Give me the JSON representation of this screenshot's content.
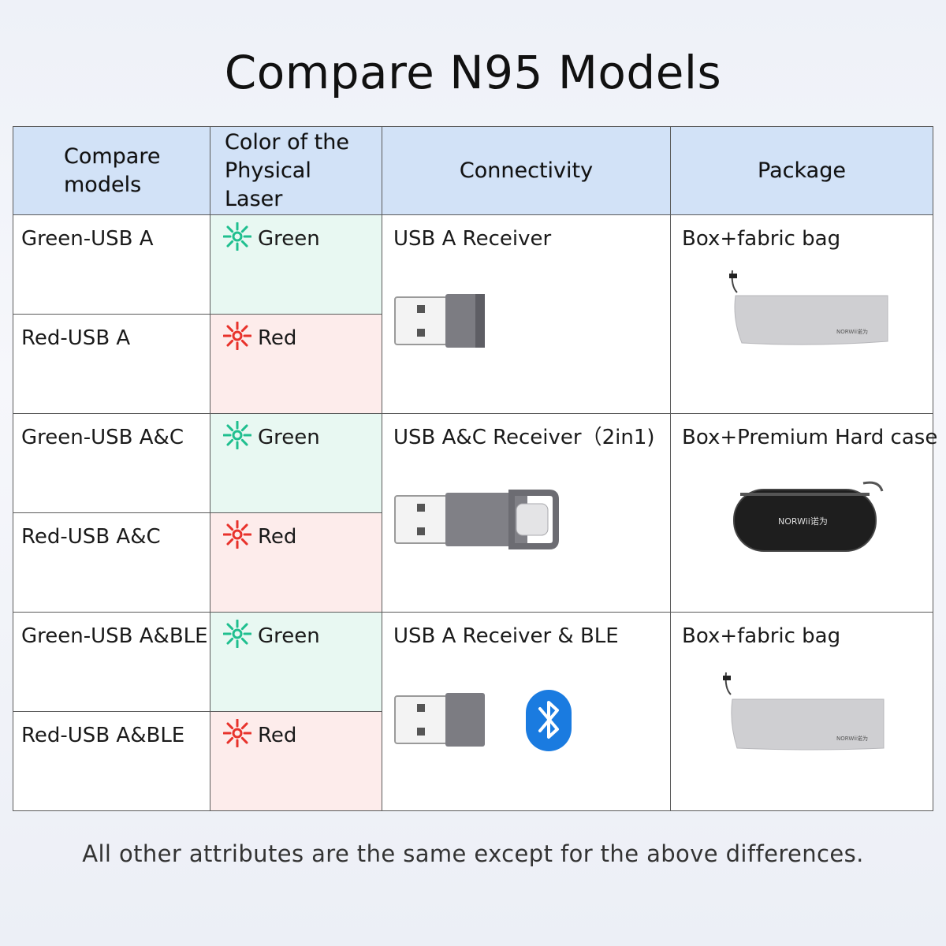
{
  "title": "Compare N95 Models",
  "headers": {
    "model": "Compare models",
    "laser": "Color of the Physical Laser",
    "connectivity": "Connectivity",
    "package": "Package"
  },
  "rows": [
    {
      "model": "Green-USB A",
      "laser": "Green",
      "laser_color": "#1fbf8f"
    },
    {
      "model": "Red-USB A",
      "laser": "Red",
      "laser_color": "#e8322b"
    },
    {
      "model": "Green-USB A&C",
      "laser": "Green",
      "laser_color": "#1fbf8f"
    },
    {
      "model": "Red-USB A&C",
      "laser": "Red",
      "laser_color": "#e8322b"
    },
    {
      "model": "Green-USB A&BLE",
      "laser": "Green",
      "laser_color": "#1fbf8f"
    },
    {
      "model": "Red-USB A&BLE",
      "laser": "Red",
      "laser_color": "#e8322b"
    }
  ],
  "groups": [
    {
      "connectivity": "USB A Receiver",
      "package": "Box+fabric bag",
      "brand": "NORWii诺为"
    },
    {
      "connectivity": "USB A&C Receiver（2in1)",
      "package": "Box+Premium Hard case",
      "brand": "NORWii诺为"
    },
    {
      "connectivity": "USB A Receiver & BLE",
      "package": "Box+fabric bag",
      "brand": "NORWii诺为"
    }
  ],
  "colors": {
    "header_bg": "#d2e2f7",
    "green_bg": "#e8f8f2",
    "red_bg": "#fdeceb",
    "bluetooth": "#1a7be0"
  },
  "footnote": "All other attributes are the same except for the above differences."
}
